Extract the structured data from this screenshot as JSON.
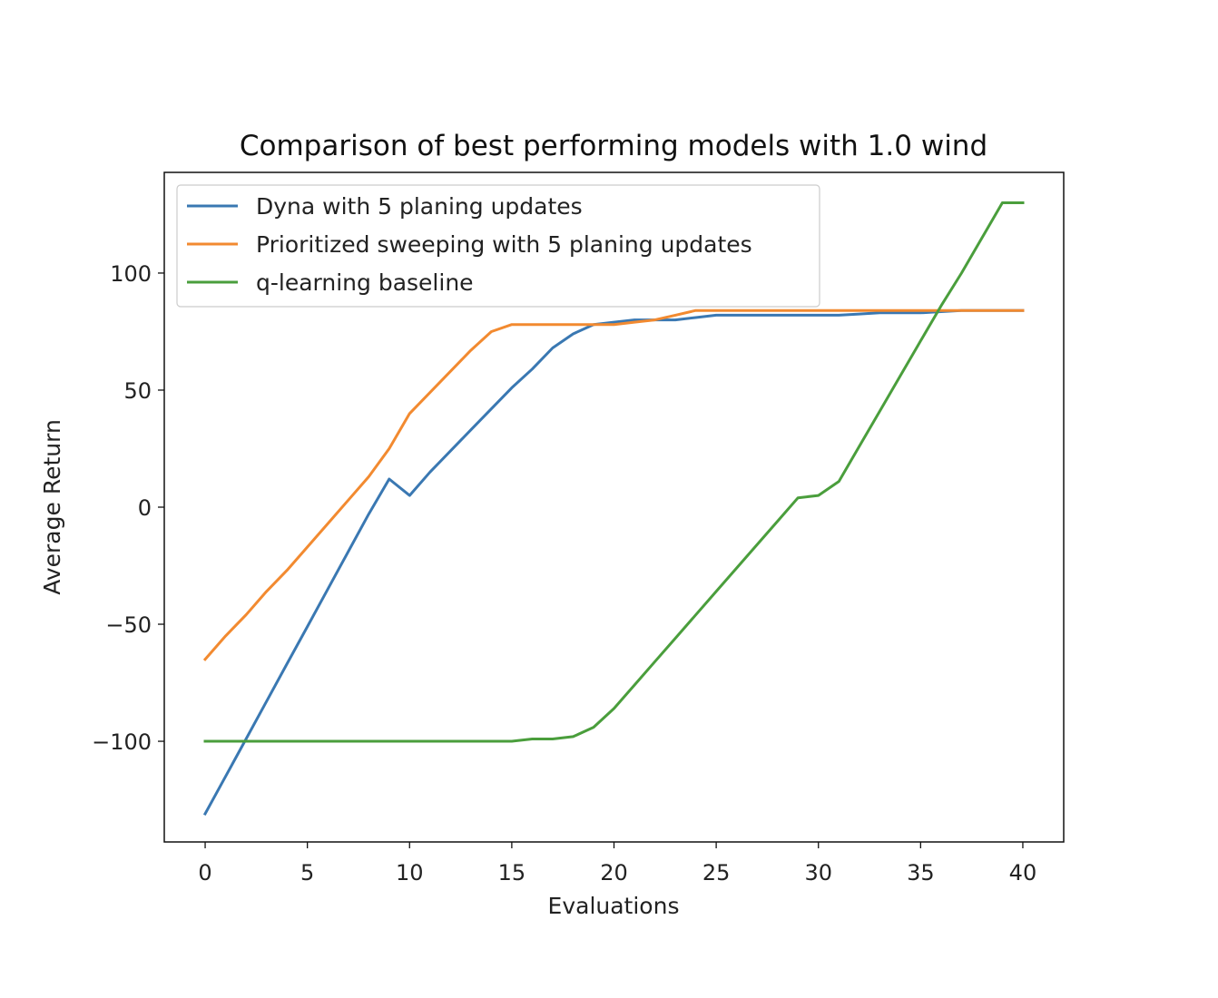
{
  "chart_data": {
    "type": "line",
    "title": "Comparison of best performing models with 1.0 wind",
    "xlabel": "Evaluations",
    "ylabel": "Average Return",
    "xlim": [
      -2,
      42
    ],
    "ylim": [
      -143,
      143
    ],
    "xticks": [
      0,
      5,
      10,
      15,
      20,
      25,
      30,
      35,
      40
    ],
    "yticks": [
      -100,
      -50,
      0,
      50,
      100
    ],
    "ytick_labels": [
      "−100",
      "−50",
      "0",
      "50",
      "100"
    ],
    "grid": false,
    "legend_position": "upper-left",
    "series": [
      {
        "name": "Dyna with 5 planing updates",
        "color": "#3a78b2",
        "x": [
          0,
          1,
          2,
          3,
          4,
          5,
          6,
          7,
          8,
          9,
          10,
          11,
          12,
          13,
          14,
          15,
          16,
          17,
          18,
          19,
          20,
          21,
          22,
          23,
          24,
          25,
          26,
          27,
          28,
          29,
          30,
          31,
          32,
          33,
          34,
          35,
          36,
          37,
          38,
          39,
          40
        ],
        "values": [
          -131,
          -115,
          -99,
          -83,
          -67,
          -51,
          -35,
          -19,
          -3,
          12,
          5,
          15,
          24,
          33,
          42,
          51,
          59,
          68,
          74,
          78,
          79,
          80,
          80,
          80,
          81,
          82,
          82,
          82,
          82,
          82,
          82,
          82,
          82.5,
          83,
          83,
          83,
          83.5,
          84,
          84,
          84,
          84
        ]
      },
      {
        "name": "Prioritized sweeping with 5 planing updates",
        "color": "#f28a30",
        "x": [
          0,
          1,
          2,
          3,
          4,
          5,
          6,
          7,
          8,
          9,
          10,
          11,
          12,
          13,
          14,
          15,
          16,
          17,
          18,
          19,
          20,
          21,
          22,
          23,
          24,
          25,
          26,
          27,
          28,
          29,
          30,
          31,
          32,
          33,
          34,
          35,
          36,
          37,
          38,
          39,
          40
        ],
        "values": [
          -65,
          -55,
          -46,
          -36,
          -27,
          -17,
          -7,
          3,
          13,
          25,
          40,
          49,
          58,
          67,
          75,
          78,
          78,
          78,
          78,
          78,
          78,
          79,
          80,
          82,
          84,
          84,
          84,
          84,
          84,
          84,
          84,
          84,
          84,
          84,
          84,
          84,
          84,
          84,
          84,
          84,
          84
        ]
      },
      {
        "name": "q-learning baseline",
        "color": "#4a9e3c",
        "x": [
          0,
          1,
          2,
          3,
          4,
          5,
          6,
          7,
          8,
          9,
          10,
          11,
          12,
          13,
          14,
          15,
          16,
          17,
          18,
          19,
          20,
          21,
          22,
          23,
          24,
          25,
          26,
          27,
          28,
          29,
          30,
          31,
          32,
          33,
          34,
          35,
          36,
          37,
          38,
          39,
          40
        ],
        "values": [
          -100,
          -100,
          -100,
          -100,
          -100,
          -100,
          -100,
          -100,
          -100,
          -100,
          -100,
          -100,
          -100,
          -100,
          -100,
          -100,
          -99,
          -99,
          -98,
          -94,
          -86,
          -76,
          -66,
          -56,
          -46,
          -36,
          -26,
          -16,
          -6,
          4,
          5,
          11,
          26,
          41,
          56,
          71,
          86,
          100,
          115,
          130,
          130
        ]
      }
    ]
  }
}
